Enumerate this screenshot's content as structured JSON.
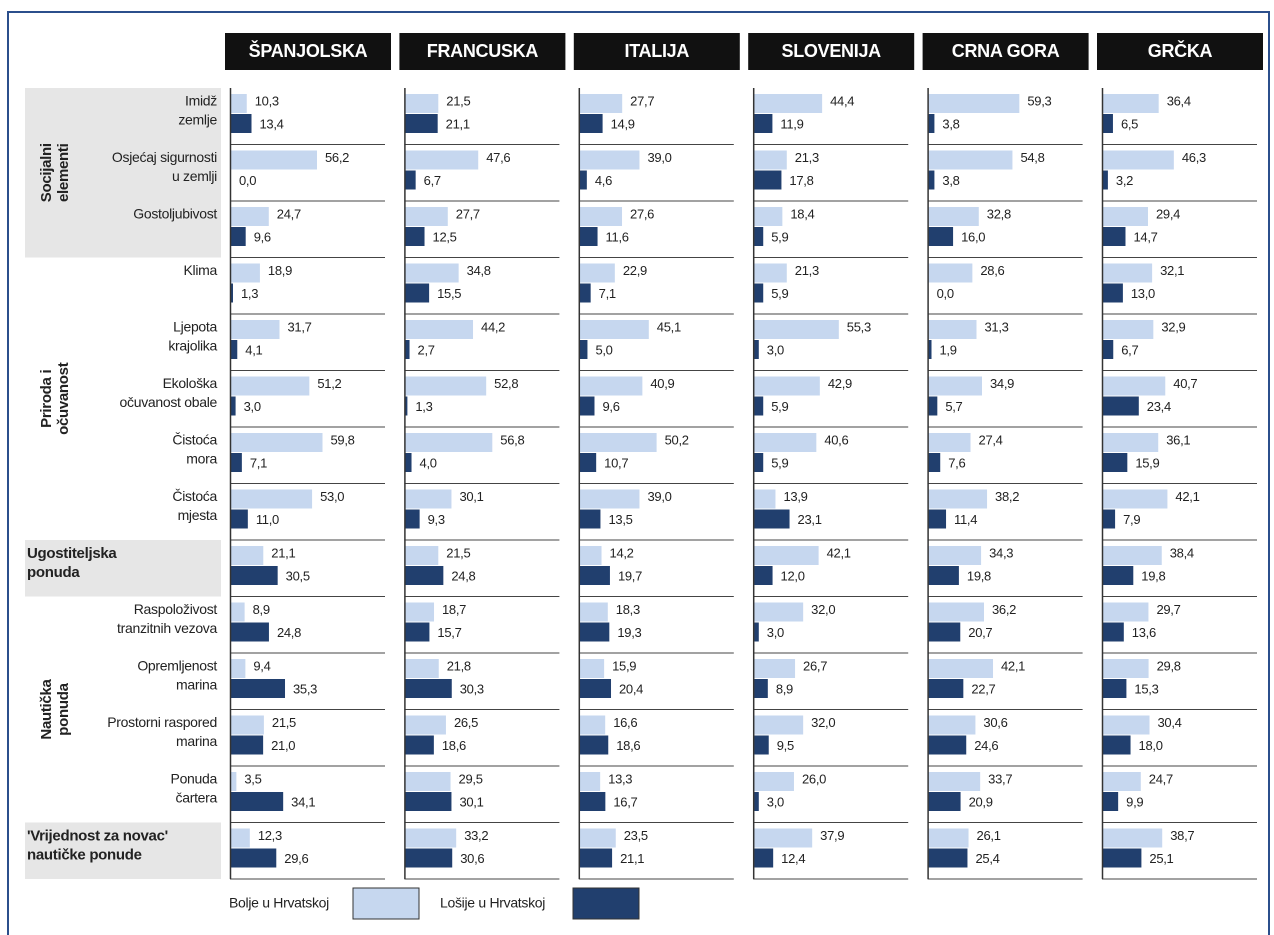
{
  "chart_data": {
    "type": "bar",
    "orientation": "horizontal",
    "xlim": [
      0,
      100
    ],
    "series": [
      {
        "name": "Bolje u Hrvatskoj",
        "color": "#c6d7ef"
      },
      {
        "name": "Lošije u Hrvatskoj",
        "color": "#213f6e"
      }
    ],
    "groups": [
      {
        "name": [
          "Socijalni",
          "elementi"
        ],
        "vertical": true,
        "shaded": true,
        "categories": [
          [
            "Imidž",
            "zemlje"
          ],
          [
            "Osjećaj sigurnosti",
            "u zemlji"
          ],
          [
            "Gostoljubivost"
          ]
        ]
      },
      {
        "name": [
          "Priroda i",
          "očuvanost"
        ],
        "vertical": true,
        "shaded": false,
        "categories": [
          [
            "Klima"
          ],
          [
            "Ljepota",
            "krajolika"
          ],
          [
            "Ekološka",
            "očuvanost obale"
          ],
          [
            "Čistoća",
            "mora"
          ],
          [
            "Čistoća",
            "mjesta"
          ]
        ]
      },
      {
        "name": [
          "Ugostiteljska",
          "ponuda"
        ],
        "vertical": false,
        "shaded": true,
        "categories": [
          null
        ]
      },
      {
        "name": [
          "Nautička",
          "ponuda"
        ],
        "vertical": true,
        "shaded": false,
        "categories": [
          [
            "Raspoloživost",
            "tranzitnih vezova"
          ],
          [
            "Opremljenost",
            "marina"
          ],
          [
            "Prostorni raspored",
            "marina"
          ],
          [
            "Ponuda",
            "čartera"
          ]
        ]
      },
      {
        "name": [
          "'Vrijednost za novac'",
          "nautičke ponude"
        ],
        "vertical": false,
        "shaded": true,
        "categories": [
          null
        ]
      }
    ],
    "panels": [
      {
        "title": "ŠPANJOLSKA",
        "series": [
          {
            "values": [
              10.3,
              56.2,
              24.7,
              18.9,
              31.7,
              51.2,
              59.8,
              53.0,
              21.1,
              8.9,
              9.4,
              21.5,
              3.5,
              12.3
            ],
            "value_labels": [
              "10,3",
              "56,2",
              "24,7",
              "18,9",
              "31,7",
              "51,2",
              "59,8",
              "53,0",
              "21,1",
              "8,9",
              "9,4",
              "21,5",
              "3,5",
              "12,3"
            ]
          },
          {
            "values": [
              13.4,
              0.0,
              9.6,
              1.3,
              4.1,
              3.0,
              7.1,
              11.0,
              30.5,
              24.8,
              35.3,
              21.0,
              34.1,
              29.6
            ],
            "value_labels": [
              "13,4",
              "0,0",
              "9,6",
              "1,3",
              "4,1",
              "3,0",
              "7,1",
              "11,0",
              "30,5",
              "24,8",
              "35,3",
              "21,0",
              "34,1",
              "29,6"
            ]
          }
        ]
      },
      {
        "title": "FRANCUSKA",
        "series": [
          {
            "values": [
              21.5,
              47.6,
              27.7,
              34.8,
              44.2,
              52.8,
              56.8,
              30.1,
              21.5,
              18.7,
              21.8,
              26.5,
              29.5,
              33.2
            ],
            "value_labels": [
              "21,5",
              "47,6",
              "27,7",
              "34,8",
              "44,2",
              "52,8",
              "56,8",
              "30,1",
              "21,5",
              "18,7",
              "21,8",
              "26,5",
              "29,5",
              "33,2"
            ]
          },
          {
            "values": [
              21.1,
              6.7,
              12.5,
              15.5,
              2.7,
              1.3,
              4.0,
              9.3,
              24.8,
              15.7,
              30.3,
              18.6,
              30.1,
              30.6
            ],
            "value_labels": [
              "21,1",
              "6,7",
              "12,5",
              "15,5",
              "2,7",
              "1,3",
              "4,0",
              "9,3",
              "24,8",
              "15,7",
              "30,3",
              "18,6",
              "30,1",
              "30,6"
            ]
          }
        ]
      },
      {
        "title": "ITALIJA",
        "series": [
          {
            "values": [
              27.7,
              39.0,
              27.6,
              22.9,
              45.1,
              40.9,
              50.2,
              39.0,
              14.2,
              18.3,
              15.9,
              16.6,
              13.3,
              23.5
            ],
            "value_labels": [
              "27,7",
              "39,0",
              "27,6",
              "22,9",
              "45,1",
              "40,9",
              "50,2",
              "39,0",
              "14,2",
              "18,3",
              "15,9",
              "16,6",
              "13,3",
              "23,5"
            ]
          },
          {
            "values": [
              14.9,
              4.6,
              11.6,
              7.1,
              5.0,
              9.6,
              10.7,
              13.5,
              19.7,
              19.3,
              20.4,
              18.6,
              16.7,
              21.1
            ],
            "value_labels": [
              "14,9",
              "4,6",
              "11,6",
              "7,1",
              "5,0",
              "9,6",
              "10,7",
              "13,5",
              "19,7",
              "19,3",
              "20,4",
              "18,6",
              "16,7",
              "21,1"
            ]
          }
        ]
      },
      {
        "title": "SLOVENIJA",
        "series": [
          {
            "values": [
              44.4,
              21.3,
              18.4,
              21.3,
              55.3,
              42.9,
              40.6,
              13.9,
              42.1,
              32.0,
              26.7,
              32.0,
              26.0,
              37.9
            ],
            "value_labels": [
              "44,4",
              "21,3",
              "18,4",
              "21,3",
              "55,3",
              "42,9",
              "40,6",
              "13,9",
              "42,1",
              "32,0",
              "26,7",
              "32,0",
              "26,0",
              "37,9"
            ]
          },
          {
            "values": [
              11.9,
              17.8,
              5.9,
              5.9,
              3.0,
              5.9,
              5.9,
              23.1,
              12.0,
              3.0,
              8.9,
              9.5,
              3.0,
              12.4
            ],
            "value_labels": [
              "11,9",
              "17,8",
              "5,9",
              "5,9",
              "3,0",
              "5,9",
              "5,9",
              "23,1",
              "12,0",
              "3,0",
              "8,9",
              "9,5",
              "3,0",
              "12,4"
            ]
          }
        ]
      },
      {
        "title": "CRNA GORA",
        "series": [
          {
            "values": [
              59.3,
              54.8,
              32.8,
              28.6,
              31.3,
              34.9,
              27.4,
              38.2,
              34.3,
              36.2,
              42.1,
              30.6,
              33.7,
              26.1
            ],
            "value_labels": [
              "59,3",
              "54,8",
              "32,8",
              "28,6",
              "31,3",
              "34,9",
              "27,4",
              "38,2",
              "34,3",
              "36,2",
              "42,1",
              "30,6",
              "33,7",
              "26,1"
            ]
          },
          {
            "values": [
              3.8,
              3.8,
              16.0,
              0.0,
              1.9,
              5.7,
              7.6,
              11.4,
              19.8,
              20.7,
              22.7,
              24.6,
              20.9,
              25.4
            ],
            "value_labels": [
              "3,8",
              "3,8",
              "16,0",
              "0,0",
              "1,9",
              "5,7",
              "7,6",
              "11,4",
              "19,8",
              "20,7",
              "22,7",
              "24,6",
              "20,9",
              "25,4"
            ]
          }
        ]
      },
      {
        "title": "GRČKA",
        "series": [
          {
            "values": [
              36.4,
              46.3,
              29.4,
              32.1,
              32.9,
              40.7,
              36.1,
              42.1,
              38.4,
              29.7,
              29.8,
              30.4,
              24.7,
              38.7
            ],
            "value_labels": [
              "36,4",
              "46,3",
              "29,4",
              "32,1",
              "32,9",
              "40,7",
              "36,1",
              "42,1",
              "38,4",
              "29,7",
              "29,8",
              "30,4",
              "24,7",
              "38,7"
            ]
          },
          {
            "values": [
              6.5,
              3.2,
              14.7,
              13.0,
              6.7,
              23.4,
              15.9,
              7.9,
              19.8,
              13.6,
              15.3,
              18.0,
              9.9,
              25.1
            ],
            "value_labels": [
              "6,5",
              "3,2",
              "14,7",
              "13,0",
              "6,7",
              "23,4",
              "15,9",
              "7,9",
              "19,8",
              "13,6",
              "15,3",
              "18,0",
              "9,9",
              "25,1"
            ]
          }
        ]
      }
    ]
  }
}
